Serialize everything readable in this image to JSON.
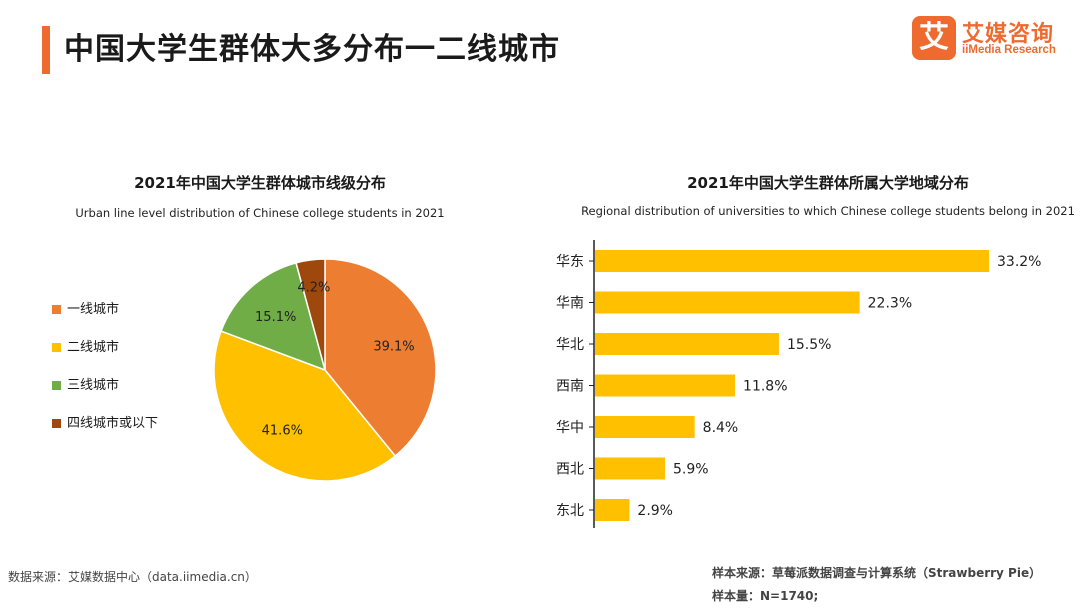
{
  "header": {
    "title": "中国大学生群体大多分布一二线城市",
    "accent_color": "#ee6a2f"
  },
  "logo": {
    "mark": "艾",
    "name_cn": "艾媒咨询",
    "name_en": "iiMedia Research"
  },
  "chart_data": [
    {
      "type": "pie",
      "title": "2021年中国大学生群体城市线级分布",
      "subtitle": "Urban line level distribution of Chinese college students in 2021",
      "categories": [
        "一线城市",
        "二线城市",
        "三线城市",
        "四线城市或以下"
      ],
      "values": [
        39.1,
        41.6,
        15.1,
        4.2
      ],
      "value_labels": [
        "39.1%",
        "41.6%",
        "15.1%",
        "4.2%"
      ],
      "colors": [
        "#ed7d31",
        "#ffc000",
        "#70ad47",
        "#9e480e"
      ],
      "legend_position": "left"
    },
    {
      "type": "bar",
      "orientation": "horizontal",
      "title": "2021年中国大学生群体所属大学地域分布",
      "subtitle": "Regional distribution of universities to which Chinese college students belong in 2021",
      "categories": [
        "华东",
        "华南",
        "华北",
        "西南",
        "华中",
        "西北",
        "东北"
      ],
      "values": [
        33.2,
        22.3,
        15.5,
        11.8,
        8.4,
        5.9,
        2.9
      ],
      "value_labels": [
        "33.2%",
        "22.3%",
        "15.5%",
        "11.8%",
        "8.4%",
        "5.9%",
        "2.9%"
      ],
      "color": "#ffc000",
      "xlim": [
        0,
        33.2
      ]
    }
  ],
  "footer": {
    "data_source": "数据来源：艾媒数据中心（data.iimedia.cn）",
    "sample_source": "样本来源：草莓派数据调查与计算系统（Strawberry Pie）",
    "sample_size": "样本量：N=1740;"
  }
}
